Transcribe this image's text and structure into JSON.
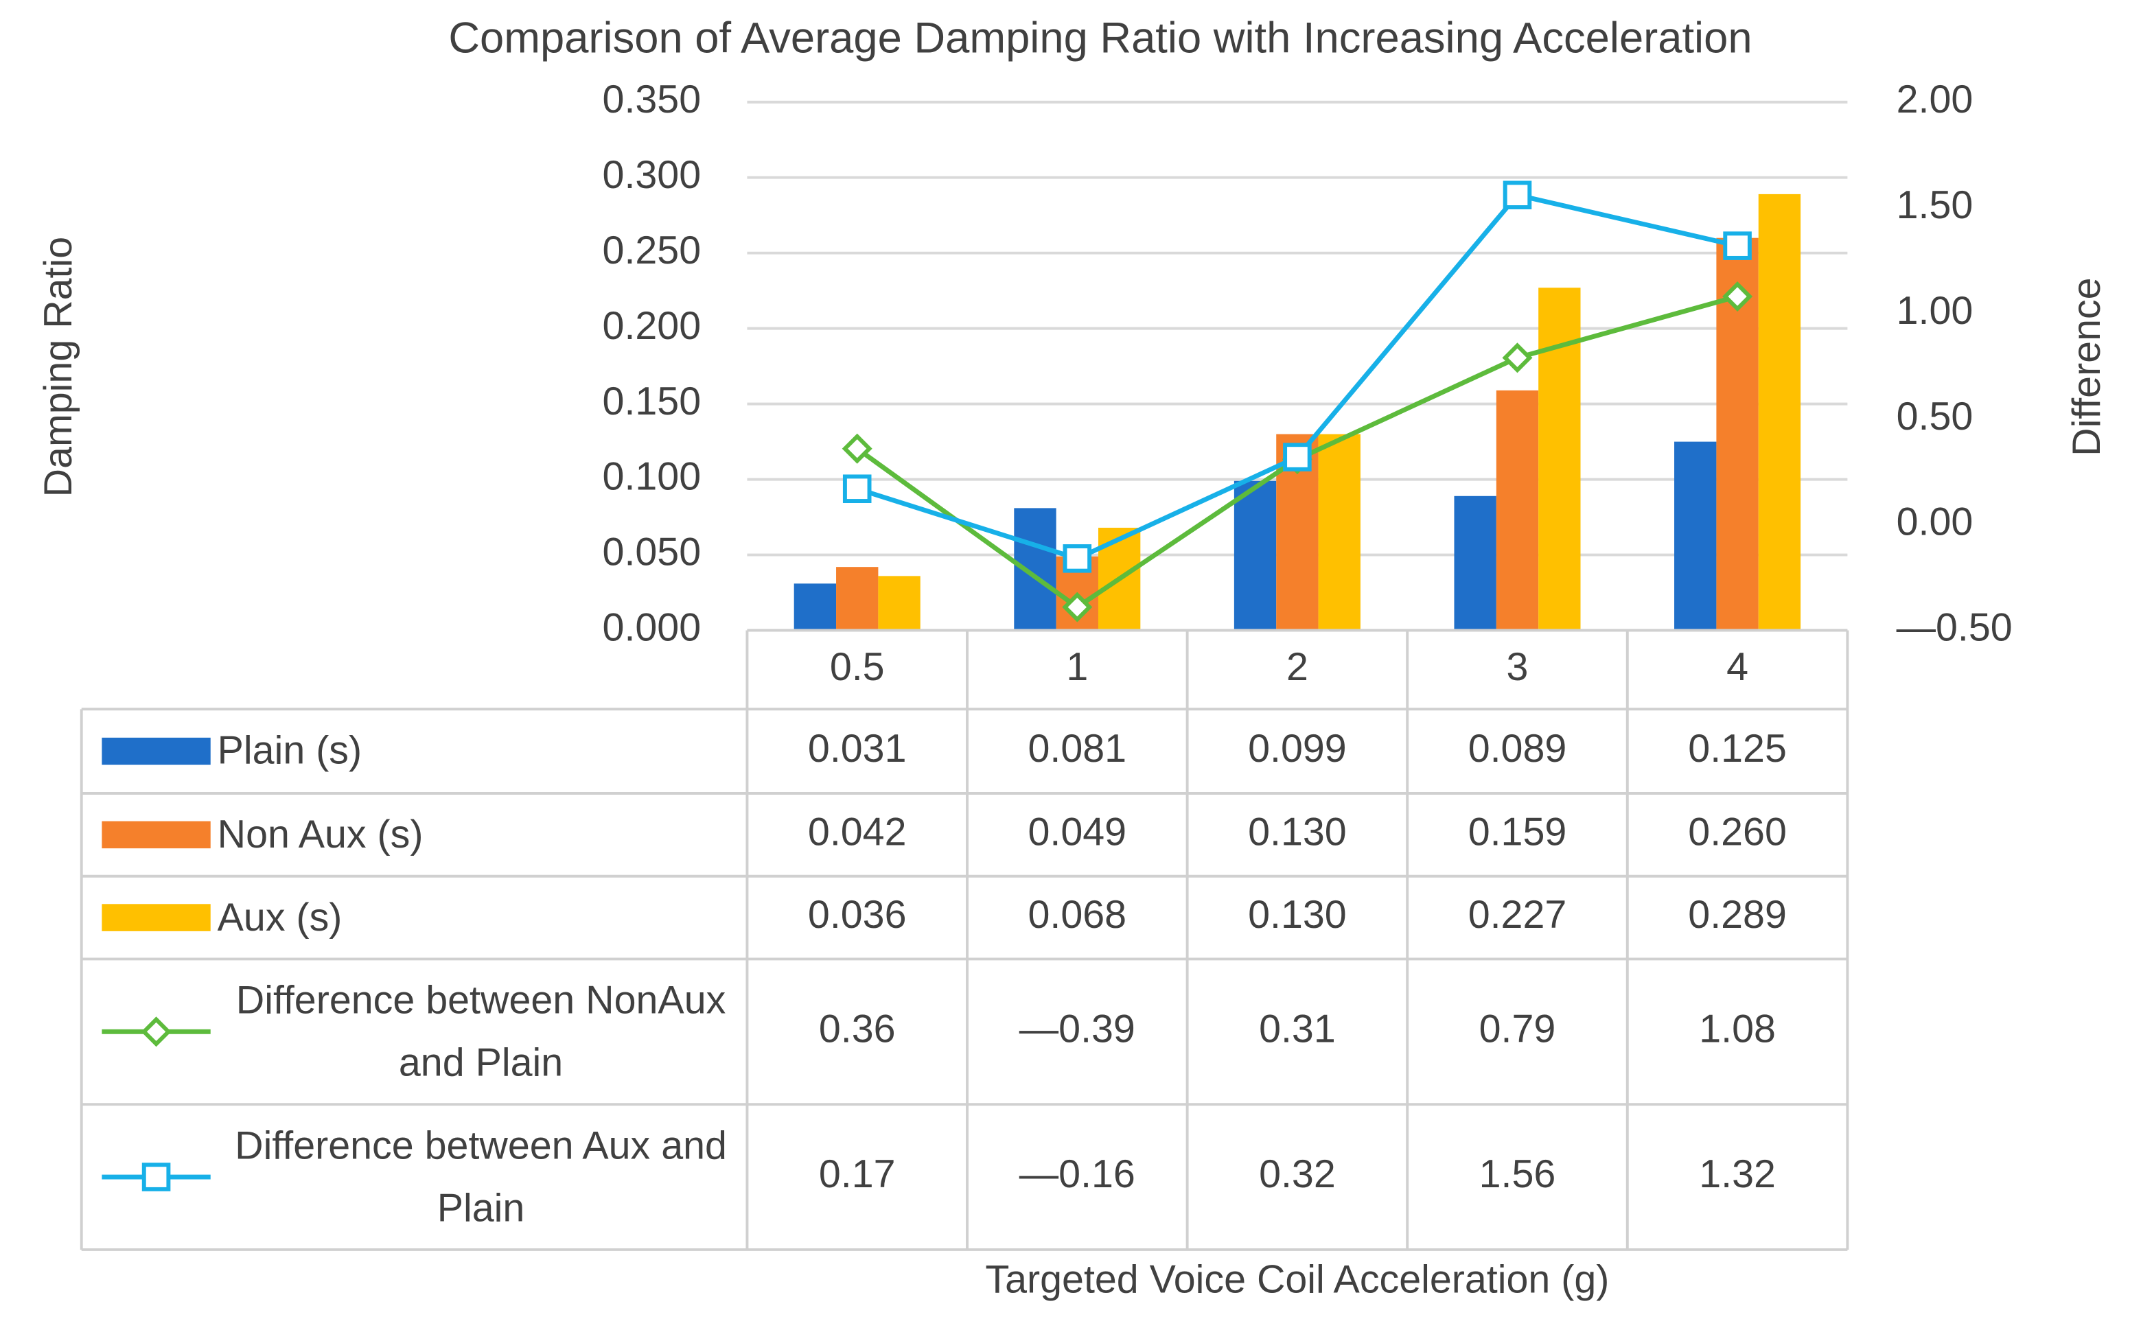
{
  "chart_data": {
    "type": "bar",
    "title": "Comparison of Average Damping Ratio with Increasing Acceleration",
    "xlabel": "Targeted Voice Coil Acceleration (g)",
    "ylabel": "Damping Ratio",
    "y2label": "Difference",
    "categories": [
      "0.5",
      "1",
      "2",
      "3",
      "4"
    ],
    "ylim": [
      0,
      0.35
    ],
    "yticks": [
      {
        "value": 0,
        "label": "0.000"
      },
      {
        "value": 0.05,
        "label": "0.050"
      },
      {
        "value": 0.1,
        "label": "0.100"
      },
      {
        "value": 0.15,
        "label": "0.150"
      },
      {
        "value": 0.2,
        "label": "0.200"
      },
      {
        "value": 0.25,
        "label": "0.250"
      },
      {
        "value": 0.3,
        "label": "0.300"
      },
      {
        "value": 0.35,
        "label": "0.350"
      }
    ],
    "y2lim": [
      -0.5,
      2
    ],
    "y2ticks": [
      {
        "value": -0.5,
        "label": "—0.50"
      },
      {
        "value": 0,
        "label": "0.00"
      },
      {
        "value": 0.5,
        "label": "0.50"
      },
      {
        "value": 1,
        "label": "1.00"
      },
      {
        "value": 1.5,
        "label": "1.50"
      },
      {
        "value": 2,
        "label": "2.00"
      }
    ],
    "grid": true,
    "data_table": true,
    "series": [
      {
        "name": "Plain (s)",
        "type": "bar",
        "color": "#1f6fc9",
        "values": [
          0.031,
          0.081,
          0.099,
          0.089,
          0.125
        ],
        "value_labels": [
          "0.031",
          "0.081",
          "0.099",
          "0.089",
          "0.125"
        ]
      },
      {
        "name": "Non Aux (s)",
        "type": "bar",
        "color": "#f5802b",
        "values": [
          0.042,
          0.049,
          0.13,
          0.159,
          0.26
        ],
        "value_labels": [
          "0.042",
          "0.049",
          "0.130",
          "0.159",
          "0.260"
        ]
      },
      {
        "name": "Aux (s)",
        "type": "bar",
        "color": "#ffc000",
        "values": [
          0.036,
          0.068,
          0.13,
          0.227,
          0.289
        ],
        "value_labels": [
          "0.036",
          "0.068",
          "0.130",
          "0.227",
          "0.289"
        ]
      },
      {
        "name": "Difference between NonAux and Plain",
        "type": "line",
        "axis": "y2",
        "marker": "diamond",
        "color": "#5dbb3c",
        "values": [
          0.36,
          -0.39,
          0.31,
          0.79,
          1.08
        ],
        "value_labels": [
          "0.36",
          "—0.39",
          "0.31",
          "0.79",
          "1.08"
        ]
      },
      {
        "name": "Difference between Aux and Plain",
        "type": "line",
        "axis": "y2",
        "marker": "square",
        "color": "#17b0e8",
        "values": [
          0.17,
          -0.16,
          0.32,
          1.56,
          1.32
        ],
        "value_labels": [
          "0.17",
          "—0.16",
          "0.32",
          "1.56",
          "1.32"
        ]
      }
    ]
  }
}
